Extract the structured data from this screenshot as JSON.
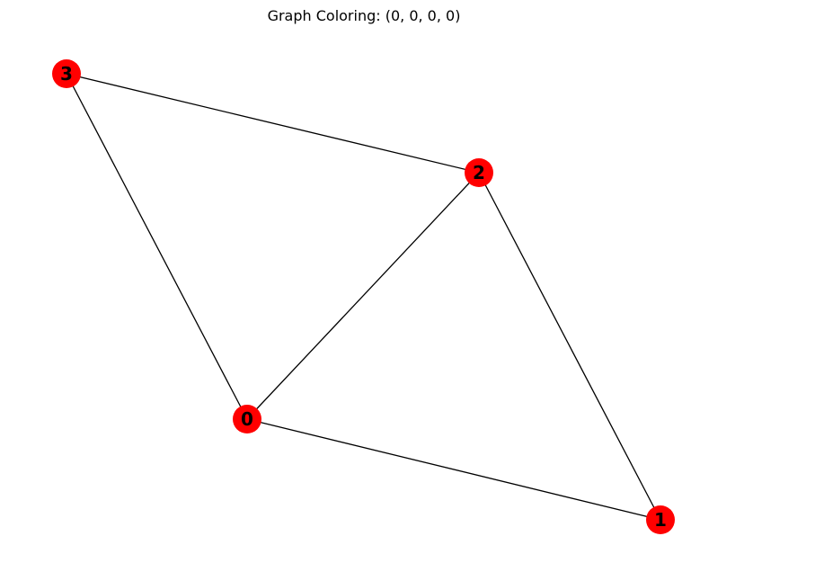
{
  "title": "Graph Coloring: (0, 0, 0, 0)",
  "node_color": "#ff0000",
  "edge_color": "#000000",
  "label_color": "#000000",
  "nodes": [
    {
      "id": "0",
      "label": "0"
    },
    {
      "id": "1",
      "label": "1"
    },
    {
      "id": "2",
      "label": "2"
    },
    {
      "id": "3",
      "label": "3"
    }
  ],
  "edges": [
    [
      "3",
      "2"
    ],
    [
      "3",
      "0"
    ],
    [
      "2",
      "0"
    ],
    [
      "2",
      "1"
    ],
    [
      "0",
      "1"
    ]
  ]
}
